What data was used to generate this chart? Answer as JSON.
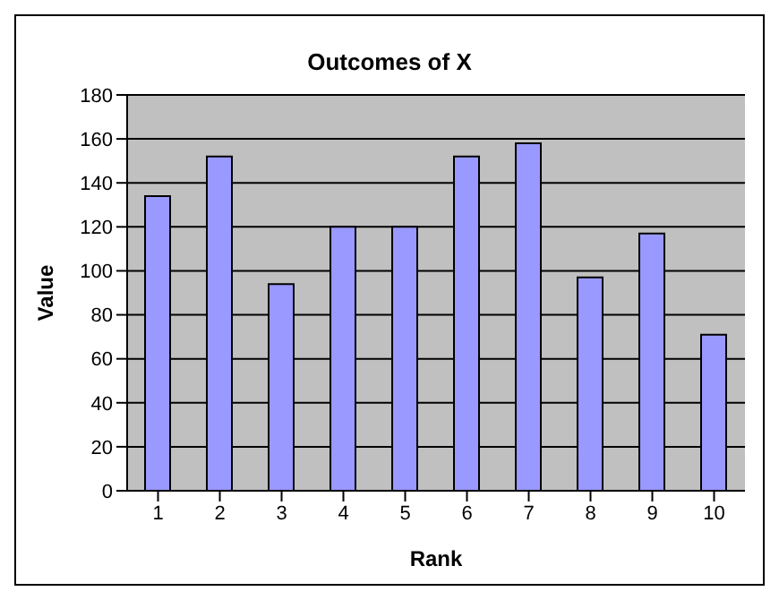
{
  "chart_data": {
    "type": "bar",
    "title": "Outcomes of X",
    "xlabel": "Rank",
    "ylabel": "Value",
    "categories": [
      "1",
      "2",
      "3",
      "4",
      "5",
      "6",
      "7",
      "8",
      "9",
      "10"
    ],
    "values": [
      134,
      152,
      94,
      120,
      120,
      152,
      158,
      97,
      117,
      71
    ],
    "color": "#9999ff",
    "ylim": [
      0,
      180
    ],
    "yticks": [
      0,
      20,
      40,
      60,
      80,
      100,
      120,
      140,
      160,
      180
    ],
    "grid": "y"
  }
}
